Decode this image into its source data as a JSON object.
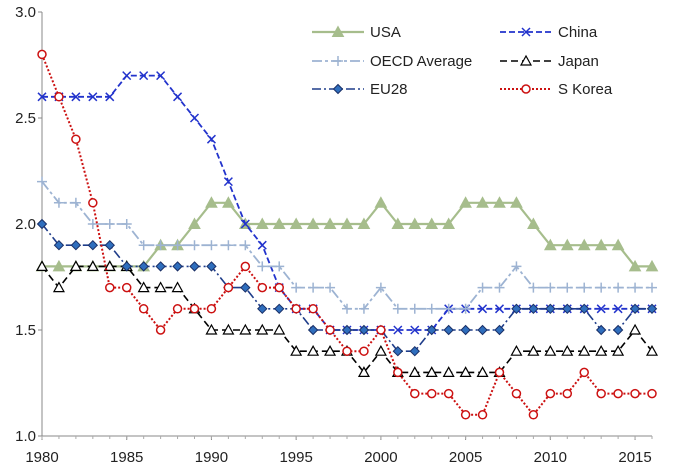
{
  "chart_data": {
    "type": "line",
    "title": "",
    "xlabel": "",
    "ylabel": "",
    "xlim": [
      1980,
      2016
    ],
    "ylim": [
      1.0,
      3.0
    ],
    "grid": false,
    "legend": "top-right",
    "x": [
      1980,
      1981,
      1982,
      1983,
      1984,
      1985,
      1986,
      1987,
      1988,
      1989,
      1990,
      1991,
      1992,
      1993,
      1994,
      1995,
      1996,
      1997,
      1998,
      1999,
      2000,
      2001,
      2002,
      2003,
      2004,
      2005,
      2006,
      2007,
      2008,
      2009,
      2010,
      2011,
      2012,
      2013,
      2014,
      2015,
      2016
    ],
    "x_ticks": [
      "1980",
      "1985",
      "1990",
      "1995",
      "2000",
      "2005",
      "2010",
      "2015"
    ],
    "y_ticks": [
      "1.0",
      "1.5",
      "2.0",
      "2.5",
      "3.0"
    ],
    "series": [
      {
        "name": "USA",
        "color": "#a6bd8c",
        "values": [
          1.8,
          1.8,
          1.8,
          1.8,
          1.8,
          1.8,
          1.8,
          1.9,
          1.9,
          2.0,
          2.1,
          2.1,
          2.0,
          2.0,
          2.0,
          2.0,
          2.0,
          2.0,
          2.0,
          2.0,
          2.1,
          2.0,
          2.0,
          2.0,
          2.0,
          2.1,
          2.1,
          2.1,
          2.1,
          2.0,
          1.9,
          1.9,
          1.9,
          1.9,
          1.9,
          1.8,
          1.8
        ]
      },
      {
        "name": "China",
        "color": "#2233cc",
        "values": [
          2.6,
          2.6,
          2.6,
          2.6,
          2.6,
          2.7,
          2.7,
          2.7,
          2.6,
          2.5,
          2.4,
          2.2,
          2.0,
          1.9,
          1.7,
          1.6,
          1.6,
          1.5,
          1.5,
          1.5,
          1.5,
          1.5,
          1.5,
          1.5,
          1.6,
          1.6,
          1.6,
          1.6,
          1.6,
          1.6,
          1.6,
          1.6,
          1.6,
          1.6,
          1.6,
          1.6,
          1.6
        ]
      },
      {
        "name": "OECD Average",
        "color": "#9db3d2",
        "values": [
          2.2,
          2.1,
          2.1,
          2.0,
          2.0,
          2.0,
          1.9,
          1.9,
          1.9,
          1.9,
          1.9,
          1.9,
          1.9,
          1.8,
          1.8,
          1.7,
          1.7,
          1.7,
          1.6,
          1.6,
          1.7,
          1.6,
          1.6,
          1.6,
          1.6,
          1.6,
          1.7,
          1.7,
          1.8,
          1.7,
          1.7,
          1.7,
          1.7,
          1.7,
          1.7,
          1.7,
          1.7
        ]
      },
      {
        "name": "Japan",
        "color": "#000000",
        "values": [
          1.8,
          1.7,
          1.8,
          1.8,
          1.8,
          1.8,
          1.7,
          1.7,
          1.7,
          1.6,
          1.5,
          1.5,
          1.5,
          1.5,
          1.5,
          1.4,
          1.4,
          1.4,
          1.4,
          1.3,
          1.4,
          1.3,
          1.3,
          1.3,
          1.3,
          1.3,
          1.3,
          1.3,
          1.4,
          1.4,
          1.4,
          1.4,
          1.4,
          1.4,
          1.4,
          1.5,
          1.4
        ]
      },
      {
        "name": "EU28",
        "color": "#1f3d8a",
        "values": [
          2.0,
          1.9,
          1.9,
          1.9,
          1.9,
          1.8,
          1.8,
          1.8,
          1.8,
          1.8,
          1.8,
          1.7,
          1.7,
          1.6,
          1.6,
          1.6,
          1.5,
          1.5,
          1.5,
          1.5,
          1.5,
          1.4,
          1.4,
          1.5,
          1.5,
          1.5,
          1.5,
          1.5,
          1.6,
          1.6,
          1.6,
          1.6,
          1.6,
          1.5,
          1.5,
          1.6,
          1.6
        ]
      },
      {
        "name": "S Korea",
        "color": "#cc1111",
        "values": [
          2.8,
          2.6,
          2.4,
          2.1,
          1.7,
          1.7,
          1.6,
          1.5,
          1.6,
          1.6,
          1.6,
          1.7,
          1.8,
          1.7,
          1.7,
          1.6,
          1.6,
          1.5,
          1.4,
          1.4,
          1.5,
          1.3,
          1.2,
          1.2,
          1.2,
          1.1,
          1.1,
          1.3,
          1.2,
          1.1,
          1.2,
          1.2,
          1.3,
          1.2,
          1.2,
          1.2,
          1.2
        ]
      }
    ]
  }
}
